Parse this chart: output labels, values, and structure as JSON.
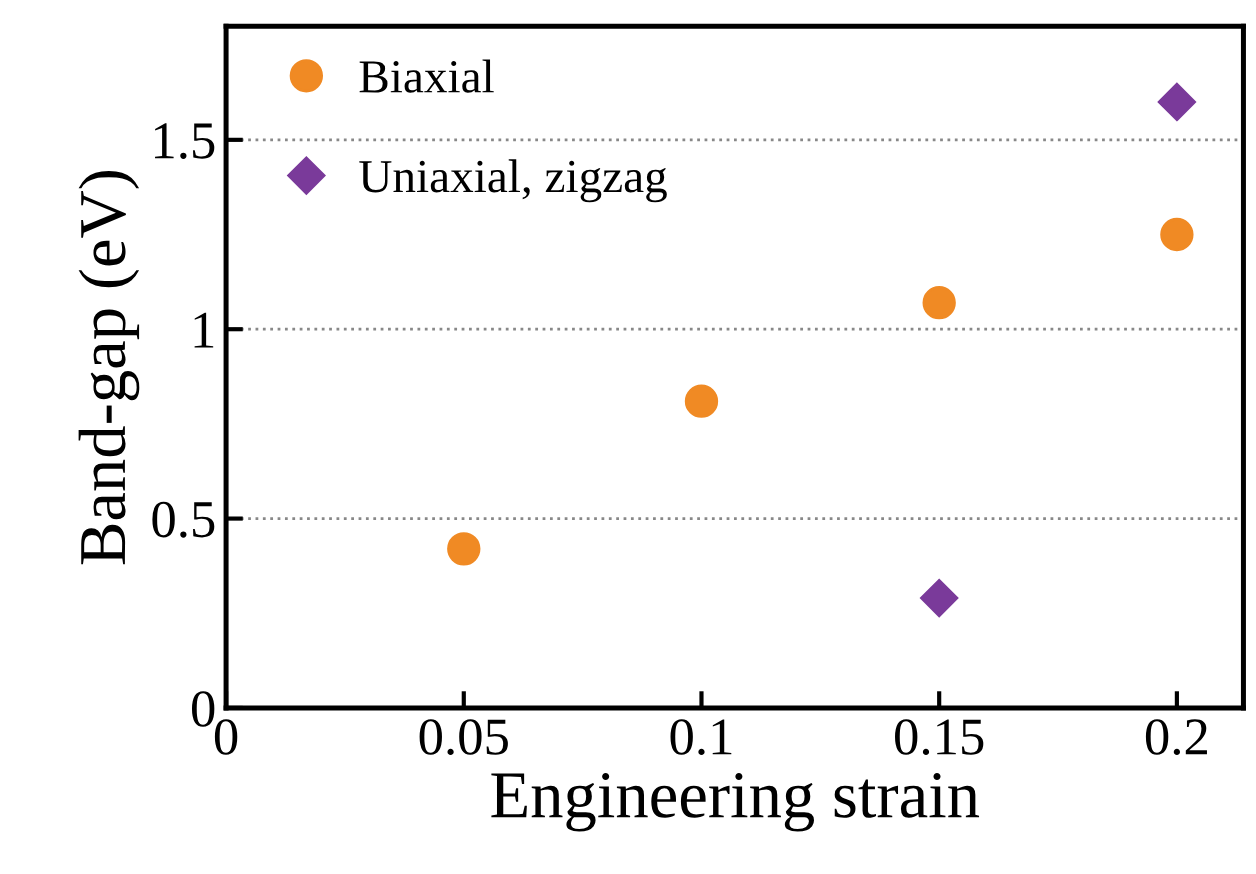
{
  "chart_data": {
    "type": "scatter",
    "xlabel": "Engineering strain",
    "ylabel": "Band-gap (eV)",
    "xlim": [
      0,
      0.214
    ],
    "ylim": [
      0,
      1.8
    ],
    "xticks": [
      0,
      0.05,
      0.1,
      0.15,
      0.2
    ],
    "yticks": [
      0,
      0.5,
      1,
      1.5
    ],
    "grid": "y",
    "legend": "top left",
    "series": [
      {
        "name": "Biaxial",
        "color": "#f08a24",
        "marker": "circle",
        "x": [
          0.05,
          0.1,
          0.15,
          0.2
        ],
        "values": [
          0.42,
          0.81,
          1.07,
          1.25
        ]
      },
      {
        "name": "Uniaxial, zigzag",
        "color": "#7a3a9a",
        "marker": "diamond",
        "x": [
          0.15,
          0.2
        ],
        "values": [
          0.29,
          1.6
        ]
      }
    ]
  }
}
